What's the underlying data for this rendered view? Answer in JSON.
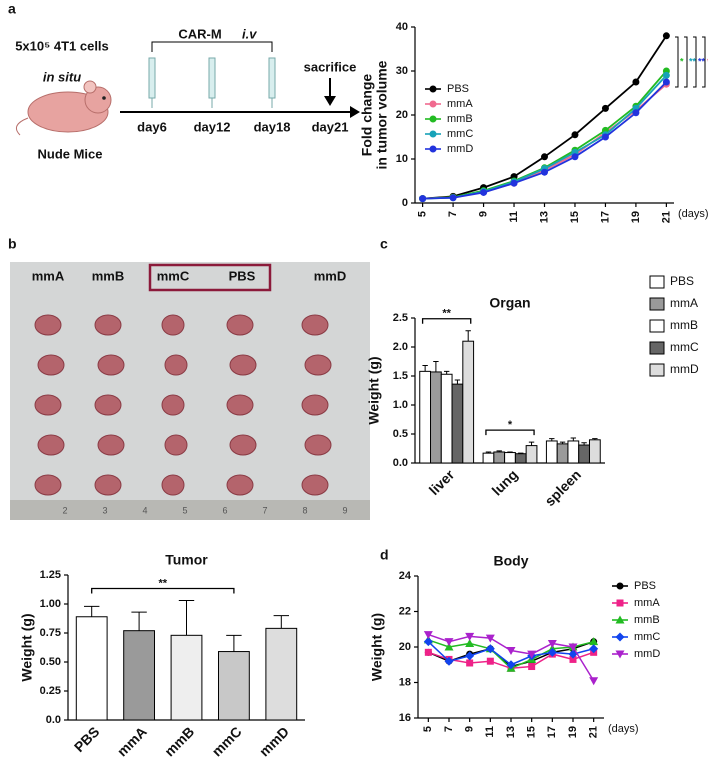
{
  "panel_labels": [
    "a",
    "b",
    "c",
    "d"
  ],
  "schema": {
    "cells": "5x10⁵ 4T1 cells",
    "site": "in situ",
    "mouse": "Nude Mice",
    "treatment": "CAR-M",
    "route": "i.v",
    "end": "sacrifice",
    "days": [
      "day6",
      "day12",
      "day18",
      "day21"
    ]
  },
  "photo": {
    "labels": [
      "mmA",
      "mmB",
      "mmC",
      "PBS",
      "mmD"
    ],
    "ruler": [
      "2",
      "3",
      "4",
      "5",
      "6",
      "7",
      "8",
      "9"
    ]
  },
  "chart_data": [
    {
      "type": "line",
      "ylabel": [
        "Fold change",
        "in tumor volume"
      ],
      "xlabel": "(days)",
      "x": [
        5,
        7,
        9,
        11,
        13,
        15,
        17,
        19,
        21
      ],
      "xlim": [
        4.5,
        21.5
      ],
      "xticks": [
        5,
        7,
        9,
        11,
        13,
        15,
        17,
        19,
        21
      ],
      "ylim": [
        0,
        40
      ],
      "yticks": [
        0,
        10,
        20,
        30,
        40
      ],
      "series": [
        {
          "name": "PBS",
          "color": "#000000",
          "marker": "circle",
          "values": [
            1,
            1.5,
            3.5,
            6,
            10.5,
            15.5,
            21.5,
            27.5,
            38
          ]
        },
        {
          "name": "mmA",
          "color": "#f06a8f",
          "marker": "circle",
          "values": [
            1,
            1.3,
            2.5,
            4.5,
            7.5,
            11,
            16,
            21,
            27
          ]
        },
        {
          "name": "mmB",
          "color": "#22bb22",
          "marker": "circle",
          "values": [
            1,
            1.3,
            2.8,
            5,
            8,
            12,
            16.5,
            22,
            30
          ]
        },
        {
          "name": "mmC",
          "color": "#17a2b8",
          "marker": "circle",
          "values": [
            1,
            1.2,
            2.6,
            4.8,
            7.8,
            11.5,
            15.5,
            21.5,
            29
          ]
        },
        {
          "name": "mmD",
          "color": "#2233dd",
          "marker": "circle",
          "values": [
            1,
            1.2,
            2.4,
            4.5,
            7,
            10.5,
            15,
            20.5,
            27.5
          ]
        }
      ],
      "annotations": [
        {
          "text": "*",
          "color": "#22bb22"
        },
        {
          "text": "**",
          "color": "#17a2b8"
        },
        {
          "text": "**",
          "color": "#2233dd"
        },
        {
          "text": "**",
          "color": "#f06a8f"
        }
      ]
    },
    {
      "type": "bar",
      "title": "Organ",
      "ylabel": "Weight (g)",
      "categories": [
        "liver",
        "lung",
        "spleen"
      ],
      "ylim": [
        0,
        2.5
      ],
      "yticks": [
        {
          "value": 0,
          "label": "0.0"
        },
        0.5,
        {
          "value": 1,
          "label": "1.0"
        },
        1.5,
        {
          "value": 2,
          "label": "2.0"
        },
        2.5
      ],
      "series": [
        {
          "name": "PBS",
          "color": "#ffffff",
          "values": [
            1.58,
            0.17,
            0.38
          ],
          "errors": [
            0.1,
            0.02,
            0.04
          ]
        },
        {
          "name": "mmA",
          "color": "#9a9a9a",
          "values": [
            1.57,
            0.19,
            0.33
          ],
          "errors": [
            0.18,
            0.02,
            0.03
          ]
        },
        {
          "name": "mmB",
          "color": "#ffffff",
          "values": [
            1.53,
            0.18,
            0.38
          ],
          "errors": [
            0.05,
            0.01,
            0.05
          ]
        },
        {
          "name": "mmC",
          "color": "#666666",
          "values": [
            1.36,
            0.16,
            0.31
          ],
          "errors": [
            0.07,
            0.01,
            0.04
          ]
        },
        {
          "name": "mmD",
          "color": "#dddddd",
          "values": [
            2.1,
            0.3,
            0.4
          ],
          "errors": [
            0.18,
            0.06,
            0.02
          ]
        }
      ],
      "annotations": [
        {
          "text": "**"
        },
        {
          "text": "*"
        }
      ]
    },
    {
      "type": "bar",
      "title": "Tumor",
      "ylabel": "Weight (g)",
      "categories": [
        "PBS",
        "mmA",
        "mmB",
        "mmC",
        "mmD"
      ],
      "values": [
        0.89,
        0.77,
        0.73,
        0.59,
        0.79
      ],
      "errors": [
        0.09,
        0.16,
        0.3,
        0.14,
        0.11
      ],
      "colors": [
        "#ffffff",
        "#9a9a9a",
        "#eeeeee",
        "#c8c8c8",
        "#dddddd"
      ],
      "ylim": [
        0,
        1.25
      ],
      "yticks": [
        {
          "value": 0,
          "label": "0.0"
        },
        0.25,
        {
          "value": 0.5,
          "label": "0.50"
        },
        0.75,
        {
          "value": 1,
          "label": "1.00"
        },
        1.25
      ],
      "annotations": [
        {
          "text": "**"
        }
      ]
    },
    {
      "type": "line",
      "title": "Body",
      "ylabel": "Weight (g)",
      "xlabel": "(days)",
      "x": [
        5,
        7,
        9,
        11,
        13,
        15,
        17,
        19,
        21
      ],
      "xlim": [
        4,
        22
      ],
      "xticks": [
        5,
        7,
        9,
        11,
        13,
        15,
        17,
        19,
        21
      ],
      "ylim": [
        16,
        24
      ],
      "yticks": [
        16,
        18,
        20,
        22,
        24
      ],
      "series": [
        {
          "name": "PBS",
          "color": "#000000",
          "marker": "circle",
          "values": [
            19.7,
            19.2,
            19.6,
            19.9,
            18.9,
            19.2,
            19.7,
            19.9,
            20.3
          ]
        },
        {
          "name": "mmA",
          "color": "#ee2288",
          "marker": "square",
          "values": [
            19.7,
            19.3,
            19.1,
            19.2,
            18.8,
            18.9,
            19.6,
            19.3,
            19.7
          ]
        },
        {
          "name": "mmB",
          "color": "#22bb22",
          "marker": "triangle",
          "values": [
            20.4,
            20.0,
            20.2,
            19.9,
            18.8,
            19.3,
            19.9,
            20.0,
            20.3
          ]
        },
        {
          "name": "mmC",
          "color": "#1144ee",
          "marker": "diamond",
          "values": [
            20.3,
            19.2,
            19.5,
            19.9,
            19.0,
            19.5,
            19.7,
            19.6,
            19.9
          ]
        },
        {
          "name": "mmD",
          "color": "#aa22cc",
          "marker": "triangle-down",
          "values": [
            20.7,
            20.3,
            20.6,
            20.5,
            19.8,
            19.6,
            20.2,
            20.0,
            18.1
          ]
        }
      ]
    }
  ]
}
